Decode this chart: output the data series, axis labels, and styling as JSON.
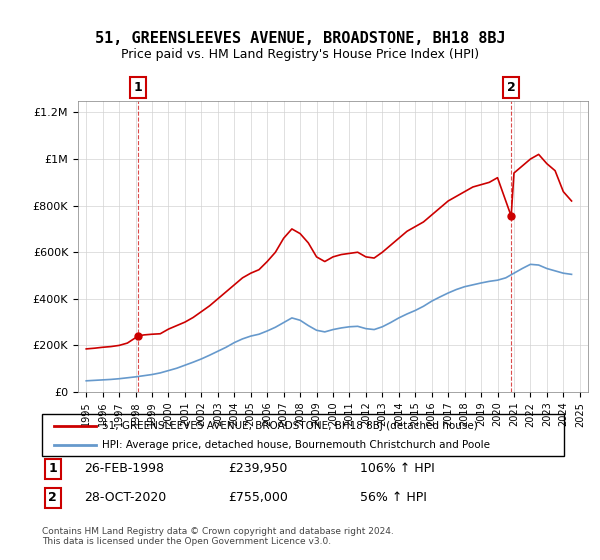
{
  "title": "51, GREENSLEEVES AVENUE, BROADSTONE, BH18 8BJ",
  "subtitle": "Price paid vs. HM Land Registry's House Price Index (HPI)",
  "legend_line1": "51, GREENSLEEVES AVENUE, BROADSTONE, BH18 8BJ (detached house)",
  "legend_line2": "HPI: Average price, detached house, Bournemouth Christchurch and Poole",
  "annotation1_label": "1",
  "annotation1_date": "26-FEB-1998",
  "annotation1_price": "£239,950",
  "annotation1_hpi": "106% ↑ HPI",
  "annotation2_label": "2",
  "annotation2_date": "28-OCT-2020",
  "annotation2_price": "£755,000",
  "annotation2_hpi": "56% ↑ HPI",
  "footer": "Contains HM Land Registry data © Crown copyright and database right 2024.\nThis data is licensed under the Open Government Licence v3.0.",
  "red_color": "#cc0000",
  "blue_color": "#6699cc",
  "point1_x": 1998.15,
  "point1_y": 239950,
  "point2_x": 2020.83,
  "point2_y": 755000,
  "ylim": [
    0,
    1250000
  ],
  "xlim": [
    1994.5,
    2025.5
  ],
  "yticks": [
    0,
    200000,
    400000,
    600000,
    800000,
    1000000,
    1200000
  ],
  "ytick_labels": [
    "£0",
    "£200K",
    "£400K",
    "£600K",
    "£800K",
    "£1M",
    "£1.2M"
  ],
  "red_x": [
    1995.0,
    1995.5,
    1996.0,
    1996.5,
    1997.0,
    1997.5,
    1998.15,
    1998.5,
    1999.0,
    1999.5,
    2000.0,
    2000.5,
    2001.0,
    2001.5,
    2002.0,
    2002.5,
    2003.0,
    2003.5,
    2004.0,
    2004.5,
    2005.0,
    2005.5,
    2006.0,
    2006.5,
    2007.0,
    2007.5,
    2008.0,
    2008.5,
    2009.0,
    2009.5,
    2010.0,
    2010.5,
    2011.0,
    2011.5,
    2012.0,
    2012.5,
    2013.0,
    2013.5,
    2014.0,
    2014.5,
    2015.0,
    2015.5,
    2016.0,
    2016.5,
    2017.0,
    2017.5,
    2018.0,
    2018.5,
    2019.0,
    2019.5,
    2020.0,
    2020.83,
    2021.0,
    2021.5,
    2022.0,
    2022.5,
    2023.0,
    2023.5,
    2024.0,
    2024.5
  ],
  "red_y": [
    185000,
    188000,
    192000,
    195000,
    200000,
    210000,
    239950,
    245000,
    248000,
    250000,
    270000,
    285000,
    300000,
    320000,
    345000,
    370000,
    400000,
    430000,
    460000,
    490000,
    510000,
    525000,
    560000,
    600000,
    660000,
    700000,
    680000,
    640000,
    580000,
    560000,
    580000,
    590000,
    595000,
    600000,
    580000,
    575000,
    600000,
    630000,
    660000,
    690000,
    710000,
    730000,
    760000,
    790000,
    820000,
    840000,
    860000,
    880000,
    890000,
    900000,
    920000,
    755000,
    940000,
    970000,
    1000000,
    1020000,
    980000,
    950000,
    860000,
    820000
  ],
  "blue_x": [
    1995.0,
    1995.5,
    1996.0,
    1996.5,
    1997.0,
    1997.5,
    1998.0,
    1998.5,
    1999.0,
    1999.5,
    2000.0,
    2000.5,
    2001.0,
    2001.5,
    2002.0,
    2002.5,
    2003.0,
    2003.5,
    2004.0,
    2004.5,
    2005.0,
    2005.5,
    2006.0,
    2006.5,
    2007.0,
    2007.5,
    2008.0,
    2008.5,
    2009.0,
    2009.5,
    2010.0,
    2010.5,
    2011.0,
    2011.5,
    2012.0,
    2012.5,
    2013.0,
    2013.5,
    2014.0,
    2014.5,
    2015.0,
    2015.5,
    2016.0,
    2016.5,
    2017.0,
    2017.5,
    2018.0,
    2018.5,
    2019.0,
    2019.5,
    2020.0,
    2020.5,
    2021.0,
    2021.5,
    2022.0,
    2022.5,
    2023.0,
    2023.5,
    2024.0,
    2024.5
  ],
  "blue_y": [
    48000,
    50000,
    52000,
    54000,
    57000,
    61000,
    65000,
    70000,
    75000,
    82000,
    92000,
    102000,
    115000,
    128000,
    142000,
    158000,
    175000,
    192000,
    212000,
    228000,
    240000,
    248000,
    262000,
    278000,
    298000,
    318000,
    308000,
    285000,
    265000,
    258000,
    268000,
    275000,
    280000,
    282000,
    272000,
    268000,
    280000,
    298000,
    318000,
    335000,
    350000,
    368000,
    390000,
    408000,
    425000,
    440000,
    452000,
    460000,
    468000,
    475000,
    480000,
    490000,
    510000,
    530000,
    548000,
    545000,
    530000,
    520000,
    510000,
    505000
  ]
}
